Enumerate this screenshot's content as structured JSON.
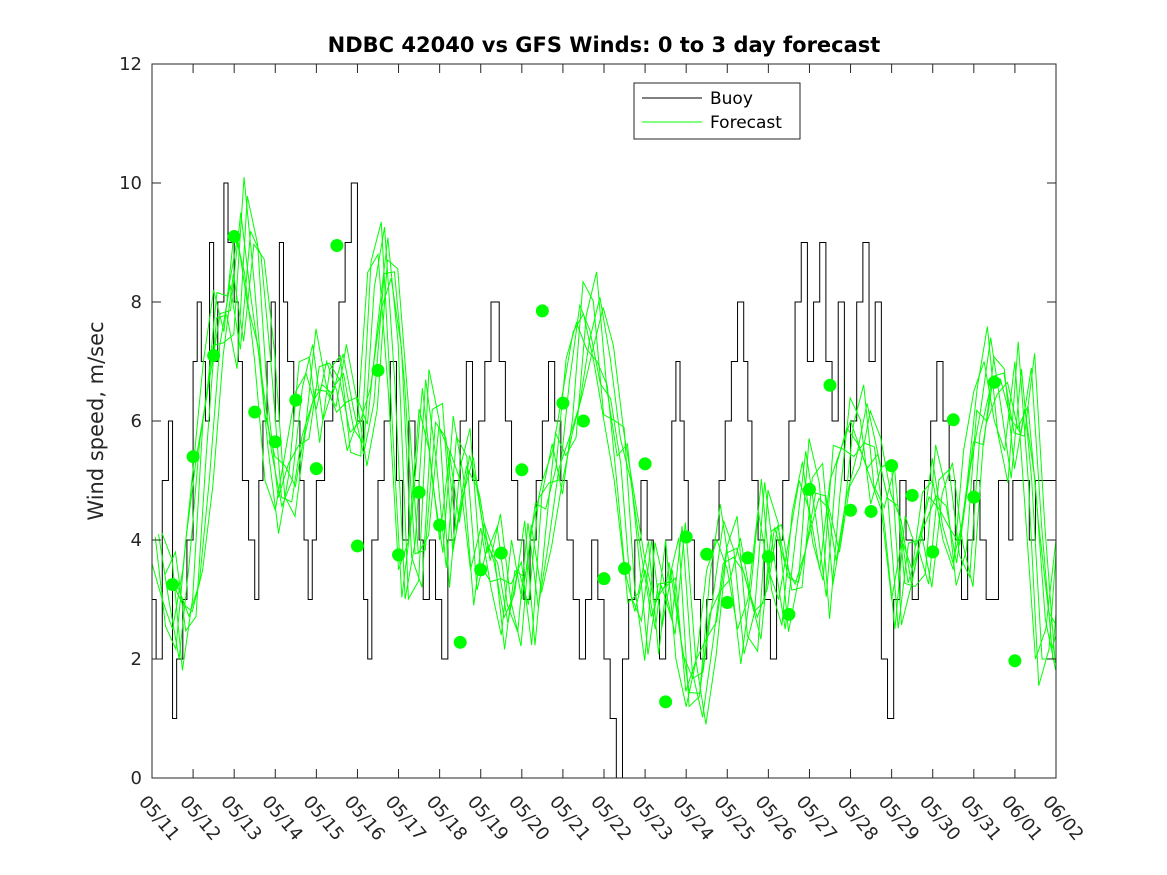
{
  "chart_data": {
    "type": "line",
    "title": "NDBC 42040 vs GFS Winds: 0 to 3 day forecast",
    "xlabel": "",
    "ylabel": "Wind speed, m/sec",
    "xlim": [
      0,
      22
    ],
    "ylim": [
      0,
      12
    ],
    "x_tick_labels": [
      "05/11",
      "05/12",
      "05/13",
      "05/14",
      "05/15",
      "05/16",
      "05/17",
      "05/18",
      "05/19",
      "05/20",
      "05/21",
      "05/22",
      "05/23",
      "05/24",
      "05/25",
      "05/26",
      "05/27",
      "05/28",
      "05/29",
      "05/30",
      "05/31",
      "06/01",
      "06/02"
    ],
    "y_ticks": [
      0,
      2,
      4,
      6,
      8,
      10,
      12
    ],
    "grid": false,
    "legend_position": "top-right",
    "colors": {
      "buoy": "#000000",
      "forecast": "#00ff00",
      "frame": "#262626"
    },
    "series": [
      {
        "name": "Buoy",
        "style": "stairs",
        "x": [
          0,
          0.1,
          0.25,
          0.4,
          0.5,
          0.6,
          0.75,
          0.85,
          1,
          1.1,
          1.2,
          1.3,
          1.4,
          1.5,
          1.6,
          1.75,
          1.85,
          2,
          2.1,
          2.2,
          2.35,
          2.5,
          2.6,
          2.7,
          2.8,
          2.9,
          3,
          3.1,
          3.2,
          3.3,
          3.45,
          3.6,
          3.7,
          3.8,
          3.9,
          4,
          4.2,
          4.4,
          4.55,
          4.7,
          4.85,
          5,
          5.15,
          5.25,
          5.35,
          5.5,
          5.65,
          5.8,
          5.95,
          6.1,
          6.25,
          6.4,
          6.5,
          6.6,
          6.75,
          6.9,
          7.05,
          7.2,
          7.35,
          7.5,
          7.65,
          7.8,
          7.95,
          8.1,
          8.25,
          8.45,
          8.6,
          8.75,
          8.9,
          9.05,
          9.2,
          9.35,
          9.5,
          9.65,
          9.8,
          9.95,
          10.1,
          10.25,
          10.4,
          10.55,
          10.7,
          10.85,
          11,
          11.15,
          11.3,
          11.45,
          11.6,
          11.75,
          11.9,
          12.05,
          12.2,
          12.35,
          12.5,
          12.65,
          12.75,
          12.85,
          12.95,
          13.05,
          13.2,
          13.35,
          13.5,
          13.65,
          13.8,
          13.95,
          14.1,
          14.25,
          14.4,
          14.5,
          14.6,
          14.75,
          14.9,
          15.05,
          15.2,
          15.35,
          15.5,
          15.65,
          15.8,
          15.95,
          16.1,
          16.25,
          16.4,
          16.55,
          16.7,
          16.85,
          17,
          17.15,
          17.3,
          17.45,
          17.6,
          17.75,
          17.9,
          18.05,
          18.2,
          18.35,
          18.5,
          18.65,
          18.8,
          18.95,
          19.1,
          19.25,
          19.4,
          19.55,
          19.7,
          19.85,
          20,
          20.15,
          20.3,
          20.45,
          20.6,
          20.75,
          20.85,
          20.95,
          21.05,
          21.2,
          21.35,
          21.5,
          21.65,
          21.8,
          22
        ],
        "y": [
          3,
          2,
          5,
          6,
          1,
          2,
          3,
          4,
          7,
          8,
          7,
          6,
          9,
          7,
          8,
          10,
          9,
          8,
          7,
          5,
          4,
          3,
          5,
          6,
          7,
          8,
          6,
          9,
          8,
          7,
          6,
          5,
          4,
          3,
          4,
          5,
          6,
          7,
          8,
          9,
          10,
          6,
          3,
          2,
          4,
          5,
          6,
          7,
          5,
          4,
          6,
          5,
          4,
          3,
          4,
          3,
          2,
          4,
          5,
          6,
          7,
          5,
          6,
          7,
          8,
          7,
          6,
          5,
          4,
          3,
          4,
          5,
          6,
          7,
          6,
          5,
          4,
          3,
          2,
          3,
          4,
          3,
          2,
          1,
          0,
          2,
          3,
          4,
          5,
          4,
          3,
          2,
          4,
          6,
          7,
          6,
          5,
          4,
          3,
          2,
          3,
          4,
          5,
          6,
          7,
          8,
          7,
          6,
          5,
          4,
          3,
          2,
          4,
          5,
          6,
          8,
          9,
          7,
          8,
          9,
          7,
          6,
          8,
          5,
          6,
          8,
          9,
          7,
          8,
          2,
          1,
          3,
          5,
          4,
          3,
          4,
          5,
          6,
          7,
          6,
          5,
          4,
          3,
          4,
          5,
          4,
          3,
          3,
          5,
          5,
          4,
          5,
          5,
          5,
          4,
          5,
          5,
          5,
          4
        ]
      },
      {
        "name": "Forecast",
        "style": "spaghetti",
        "x": [
          0,
          0.25,
          0.5,
          0.75,
          1,
          1.25,
          1.5,
          1.75,
          2,
          2.25,
          2.5,
          2.75,
          3,
          3.25,
          3.5,
          3.75,
          4,
          4.25,
          4.5,
          4.75,
          5,
          5.25,
          5.5,
          5.75,
          6,
          6.25,
          6.5,
          6.75,
          7,
          7.25,
          7.5,
          7.75,
          8,
          8.25,
          8.5,
          8.75,
          9,
          9.25,
          9.5,
          9.75,
          10,
          10.25,
          10.5,
          10.75,
          11,
          11.25,
          11.5,
          11.75,
          12,
          12.25,
          12.5,
          12.75,
          13,
          13.25,
          13.5,
          13.75,
          14,
          14.25,
          14.5,
          14.75,
          15,
          15.25,
          15.5,
          15.75,
          16,
          16.25,
          16.5,
          16.75,
          17,
          17.25,
          17.5,
          17.75,
          18,
          18.25,
          18.5,
          18.75,
          19,
          19.25,
          19.5,
          19.75,
          20,
          20.25,
          20.5,
          20.75,
          21,
          21.25,
          21.5,
          21.75,
          22
        ],
        "y": [
          3.6,
          3.0,
          2.5,
          3.5,
          5.2,
          7.0,
          8.2,
          7.5,
          9.2,
          8.5,
          7.0,
          5.0,
          4.5,
          5.5,
          6.5,
          6.8,
          6.2,
          7.0,
          6.5,
          5.5,
          6.0,
          8.5,
          8.8,
          6.5,
          3.5,
          4.0,
          6.2,
          5.5,
          4.0,
          5.5,
          5.0,
          3.5,
          4.2,
          3.2,
          2.4,
          4.0,
          3.0,
          4.2,
          5.0,
          5.5,
          6.5,
          7.5,
          7.8,
          7.0,
          6.0,
          5.0,
          3.5,
          2.8,
          3.5,
          2.5,
          4.0,
          2.0,
          1.2,
          2.0,
          3.5,
          4.0,
          3.5,
          2.5,
          3.0,
          4.5,
          3.5,
          3.0,
          4.0,
          5.0,
          4.5,
          3.5,
          5.0,
          5.5,
          6.0,
          5.5,
          5.0,
          4.5,
          3.0,
          4.0,
          3.5,
          4.8,
          5.0,
          4.0,
          3.5,
          5.5,
          6.5,
          7.0,
          6.0,
          5.5,
          7.0,
          4.5,
          2.0,
          2.5,
          4.0
        ]
      },
      {
        "name": "",
        "role": "analysis markers",
        "x": [
          0.5,
          1.0,
          1.5,
          2.0,
          2.5,
          3.0,
          3.5,
          4.0,
          4.5,
          5.0,
          5.5,
          6.0,
          6.5,
          7.0,
          7.5,
          8.0,
          8.5,
          9.0,
          9.5,
          10.0,
          10.5,
          11.0,
          11.5,
          12.0,
          12.5,
          13.0,
          13.5,
          14.0,
          14.5,
          15.0,
          15.5,
          16.0,
          16.5,
          17.0,
          17.5,
          18.0,
          18.5,
          19.0,
          19.5,
          20.0,
          20.5,
          21.0
        ],
        "y": [
          3.25,
          5.4,
          7.1,
          9.1,
          6.15,
          5.65,
          6.35,
          5.2,
          8.95,
          3.9,
          6.85,
          3.75,
          4.8,
          4.25,
          2.28,
          3.5,
          3.78,
          5.18,
          7.85,
          6.3,
          6.0,
          3.35,
          3.52,
          5.28,
          1.28,
          4.05,
          3.76,
          2.95,
          3.7,
          3.72,
          2.75,
          4.85,
          6.6,
          4.5,
          4.48,
          5.25,
          4.75,
          3.8,
          6.02,
          4.72,
          6.65,
          1.97
        ]
      }
    ]
  }
}
